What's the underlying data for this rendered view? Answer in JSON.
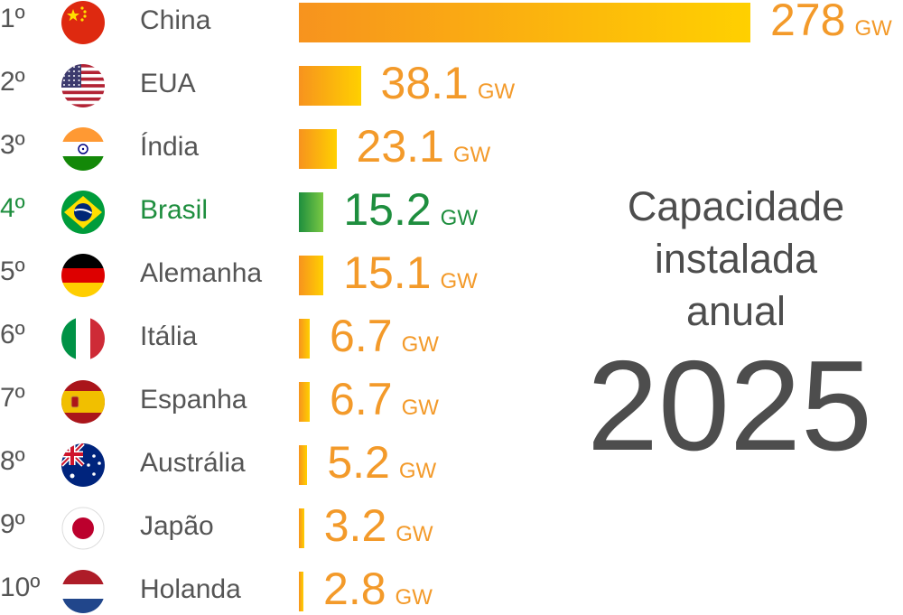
{
  "chart_data": {
    "type": "bar",
    "unit": "GW",
    "categories": [
      "China",
      "EUA",
      "Índia",
      "Brasil",
      "Alemanha",
      "Itália",
      "Espanha",
      "Austrália",
      "Japão",
      "Holanda"
    ],
    "ranks": [
      "1º",
      "2º",
      "3º",
      "4º",
      "5º",
      "6º",
      "7º",
      "8º",
      "9º",
      "10º"
    ],
    "values": [
      278,
      38.1,
      23.1,
      15.2,
      15.1,
      6.7,
      6.7,
      5.2,
      3.2,
      2.8
    ],
    "value_labels": [
      "278",
      "38.1",
      "23.1",
      "15.2",
      "15.1",
      "6.7",
      "6.7",
      "5.2",
      "3.2",
      "2.8"
    ],
    "flag_icons": [
      "china-flag-icon",
      "usa-flag-icon",
      "india-flag-icon",
      "brazil-flag-icon",
      "germany-flag-icon",
      "italy-flag-icon",
      "spain-flag-icon",
      "australia-flag-icon",
      "japan-flag-icon",
      "netherlands-flag-icon"
    ],
    "highlight": "Brasil",
    "colors": {
      "bar_gradient_start": "#f7931e",
      "bar_gradient_end": "#ffd000",
      "highlight_start": "#1e8e3e",
      "highlight_end": "#7ac943",
      "value_text": "#f39a2a",
      "highlight_text": "#1e8e3e",
      "label_text": "#555555",
      "title_text": "#4d4d4d"
    }
  },
  "title": {
    "lines": [
      "Capacidade",
      "instalada",
      "anual"
    ],
    "year": "2025"
  }
}
